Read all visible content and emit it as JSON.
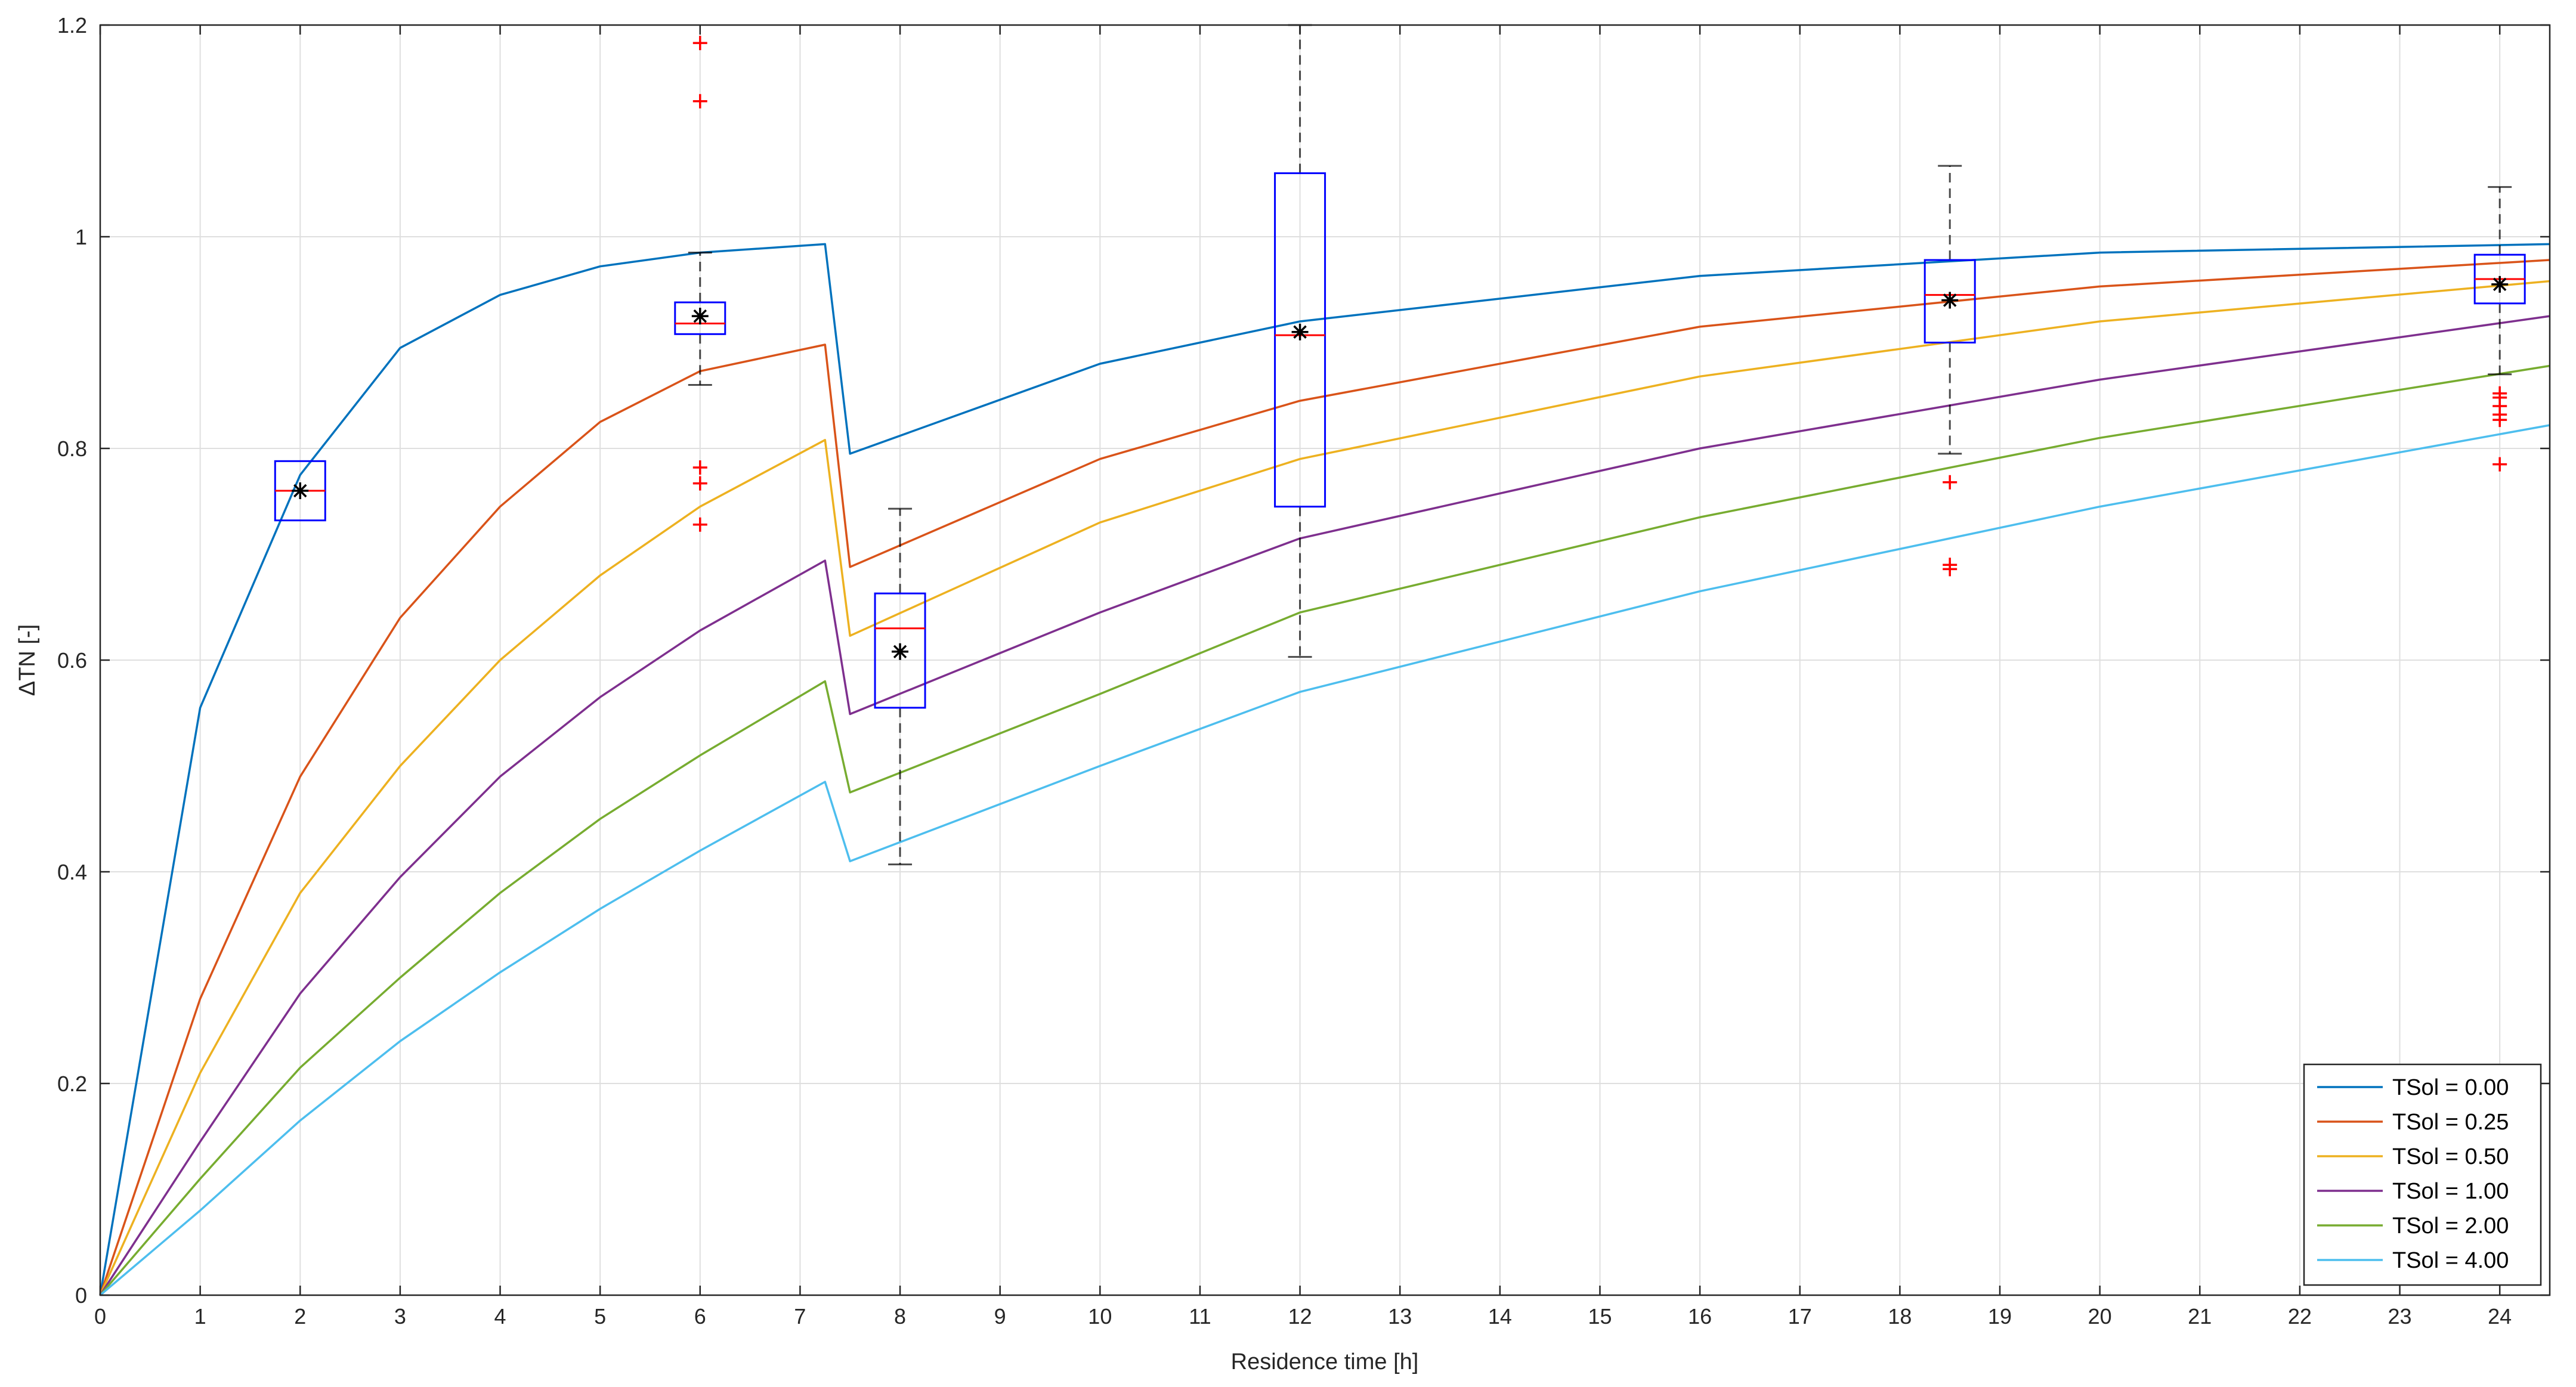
{
  "chart_data": {
    "type": "line",
    "xlabel": "Residence time [h]",
    "ylabel": "ΔTN [-]",
    "xlim": [
      0,
      24.5
    ],
    "ylim": [
      0,
      1.2
    ],
    "xticks": [
      0,
      1,
      2,
      3,
      4,
      5,
      6,
      7,
      8,
      9,
      10,
      11,
      12,
      13,
      14,
      15,
      16,
      17,
      18,
      19,
      20,
      21,
      22,
      23,
      24
    ],
    "yticks": [
      0,
      0.2,
      0.4,
      0.6,
      0.8,
      1,
      1.2
    ],
    "ytick_labels": [
      "0",
      "0.2",
      "0.4",
      "0.6",
      "0.8",
      "1",
      "1.2"
    ],
    "grid": true,
    "legend_position": "bottom-right",
    "series": [
      {
        "name": "TSol = 0.00",
        "color": "#0072bd",
        "x": [
          0,
          1,
          2,
          3,
          4,
          5,
          6,
          7.25,
          7.5,
          10,
          12,
          16,
          20,
          24.5
        ],
        "y": [
          0,
          0.555,
          0.775,
          0.895,
          0.945,
          0.972,
          0.985,
          0.993,
          0.795,
          0.88,
          0.92,
          0.963,
          0.985,
          0.993
        ]
      },
      {
        "name": "TSol = 0.25",
        "color": "#d95319",
        "x": [
          0,
          1,
          2,
          3,
          4,
          5,
          6,
          7.25,
          7.5,
          10,
          12,
          16,
          20,
          24.5
        ],
        "y": [
          0,
          0.28,
          0.49,
          0.64,
          0.745,
          0.825,
          0.873,
          0.898,
          0.688,
          0.79,
          0.845,
          0.915,
          0.953,
          0.978
        ]
      },
      {
        "name": "TSol = 0.50",
        "color": "#edb120",
        "x": [
          0,
          1,
          2,
          3,
          4,
          5,
          6,
          7.25,
          7.5,
          10,
          12,
          16,
          20,
          24.5
        ],
        "y": [
          0,
          0.21,
          0.38,
          0.5,
          0.6,
          0.68,
          0.745,
          0.808,
          0.623,
          0.73,
          0.79,
          0.868,
          0.92,
          0.958
        ]
      },
      {
        "name": "TSol = 1.00",
        "color": "#7e2f8e",
        "x": [
          0,
          1,
          2,
          3,
          4,
          5,
          6,
          7.25,
          7.5,
          10,
          12,
          16,
          20,
          24.5
        ],
        "y": [
          0,
          0.145,
          0.285,
          0.395,
          0.49,
          0.565,
          0.628,
          0.694,
          0.549,
          0.645,
          0.715,
          0.8,
          0.865,
          0.925
        ]
      },
      {
        "name": "TSol = 2.00",
        "color": "#77ac30",
        "x": [
          0,
          1,
          2,
          3,
          4,
          5,
          6,
          7.25,
          7.5,
          10,
          12,
          16,
          20,
          24.5
        ],
        "y": [
          0,
          0.11,
          0.215,
          0.3,
          0.38,
          0.45,
          0.51,
          0.58,
          0.475,
          0.568,
          0.645,
          0.735,
          0.81,
          0.878
        ]
      },
      {
        "name": "TSol = 4.00",
        "color": "#4dbeee",
        "x": [
          0,
          1,
          2,
          3,
          4,
          5,
          6,
          7.25,
          7.5,
          10,
          12,
          16,
          20,
          24.5
        ],
        "y": [
          0,
          0.08,
          0.165,
          0.24,
          0.305,
          0.365,
          0.42,
          0.485,
          0.41,
          0.5,
          0.57,
          0.665,
          0.745,
          0.822
        ]
      }
    ],
    "boxplots": [
      {
        "x": 2,
        "q1": 0.732,
        "median": 0.76,
        "q3": 0.788,
        "whisker_low": null,
        "whisker_high": null,
        "mean": 0.76,
        "outliers": []
      },
      {
        "x": 6,
        "q1": 0.908,
        "median": 0.918,
        "q3": 0.938,
        "whisker_low": 0.86,
        "whisker_high": 0.985,
        "mean": 0.925,
        "outliers": [
          1.183,
          1.128,
          0.782,
          0.767,
          0.728
        ]
      },
      {
        "x": 8,
        "q1": 0.555,
        "median": 0.63,
        "q3": 0.663,
        "whisker_low": 0.407,
        "whisker_high": 0.743,
        "mean": 0.608,
        "outliers": []
      },
      {
        "x": 12,
        "q1": 0.745,
        "median": 0.907,
        "q3": 1.06,
        "whisker_low": 0.603,
        "whisker_high": 1.2,
        "mean": 0.91,
        "outliers": []
      },
      {
        "x": 18.5,
        "q1": 0.9,
        "median": 0.945,
        "q3": 0.978,
        "whisker_low": 0.795,
        "whisker_high": 1.067,
        "mean": 0.94,
        "outliers": [
          0.768,
          0.69,
          0.686
        ]
      },
      {
        "x": 24,
        "q1": 0.937,
        "median": 0.96,
        "q3": 0.983,
        "whisker_low": 0.87,
        "whisker_high": 1.047,
        "mean": 0.955,
        "outliers": [
          0.852,
          0.848,
          0.84,
          0.832,
          0.827,
          0.785
        ]
      }
    ],
    "box_color": "#0000ff",
    "median_color": "#ff0000",
    "whisker_color": "#000000",
    "outlier_color": "#ff0000",
    "mean_color": "#000000"
  }
}
